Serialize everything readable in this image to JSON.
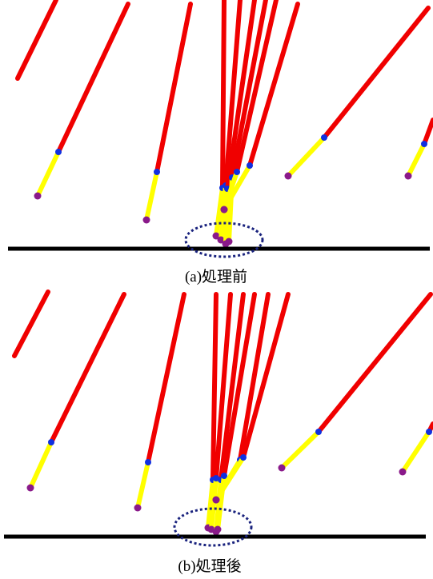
{
  "panels": [
    {
      "caption": "(a)処理前"
    },
    {
      "caption": "(b)処理後"
    }
  ]
}
